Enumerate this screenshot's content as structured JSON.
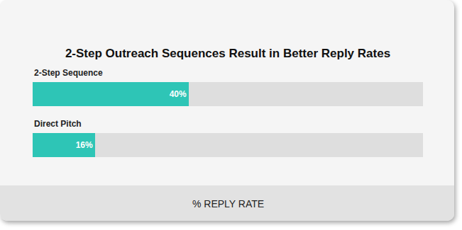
{
  "chart_data": {
    "type": "bar",
    "orientation": "horizontal",
    "title": "2-Step Outreach Sequences Result in Better Reply Rates",
    "x_label": "% REPLY RATE",
    "categories": [
      "2-Step Sequence",
      "Direct Pitch"
    ],
    "values": [
      40,
      16
    ],
    "value_labels": [
      "40%",
      "16%"
    ],
    "data_labels": true,
    "color": "#2ec5b6",
    "xlim": [
      0,
      100
    ],
    "xticks": [],
    "grid": false,
    "tick_labels": false
  }
}
